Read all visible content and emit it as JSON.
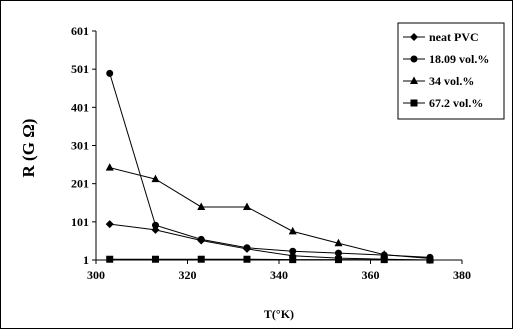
{
  "chart_data": {
    "type": "line",
    "title": "",
    "xlabel": "T(°K)",
    "ylabel": "R (G Ω)",
    "xlim": [
      300,
      380
    ],
    "ylim": [
      1,
      601
    ],
    "xticks": [
      300,
      320,
      340,
      360,
      380
    ],
    "yticks": [
      1,
      101,
      201,
      301,
      401,
      501,
      601
    ],
    "grid": false,
    "legend_position": "top-right",
    "series": [
      {
        "name": "neat PVC",
        "marker": "diamond",
        "x": [
          303,
          313,
          323,
          333,
          343,
          353,
          363,
          373
        ],
        "y": [
          95,
          80,
          52,
          30,
          12,
          6,
          3,
          1
        ]
      },
      {
        "name": "18.09 vol.%",
        "marker": "circle",
        "x": [
          303,
          313,
          323,
          333,
          343,
          353,
          363,
          373
        ],
        "y": [
          490,
          92,
          55,
          33,
          24,
          19,
          14,
          8
        ]
      },
      {
        "name": "34 vol.%",
        "marker": "triangle",
        "x": [
          303,
          313,
          323,
          333,
          343,
          353,
          363,
          373
        ],
        "y": [
          243,
          213,
          140,
          140,
          76,
          45,
          15,
          5
        ]
      },
      {
        "name": "67.2 vol.%",
        "marker": "square",
        "x": [
          303,
          313,
          323,
          333,
          343,
          353,
          363,
          373
        ],
        "y": [
          3,
          3,
          3,
          3,
          2,
          2,
          2,
          1
        ]
      }
    ]
  }
}
